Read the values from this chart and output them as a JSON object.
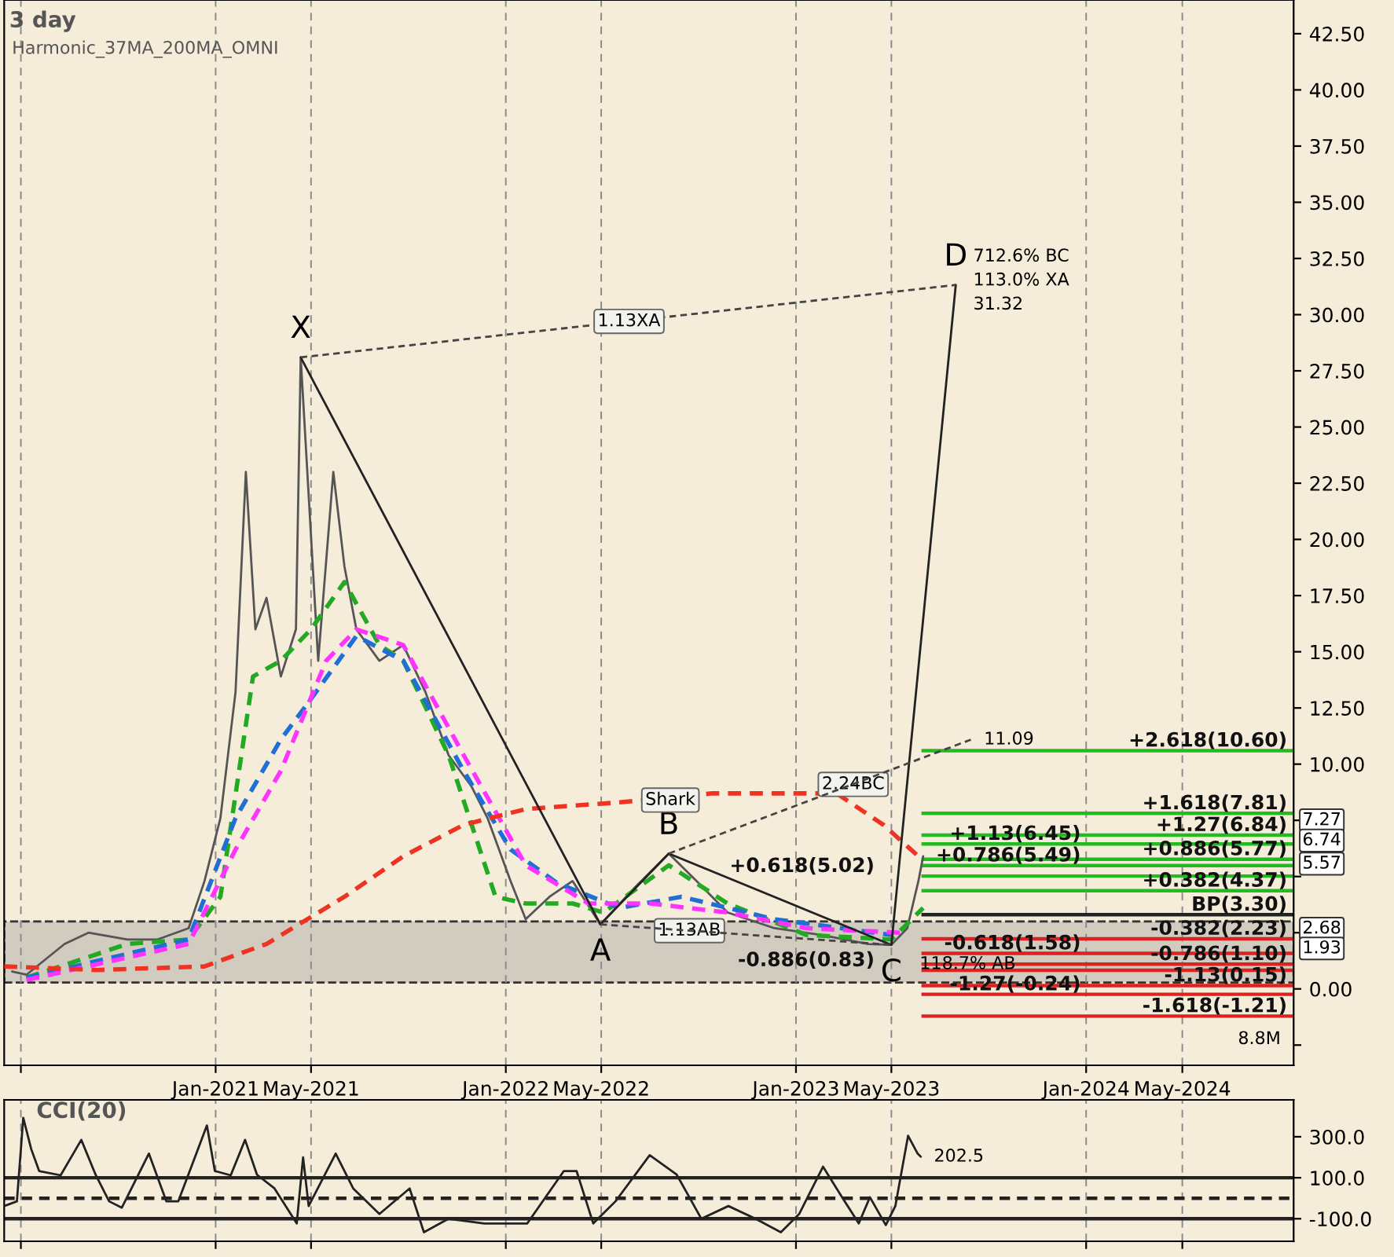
{
  "chart_data": [
    {
      "type": "line",
      "title": "3 day",
      "subtitle": "Harmonic_37MA_200MA_OMNI",
      "xlim": [
        "2020-04-10",
        "2024-09-18"
      ],
      "ylim": [
        -3.4,
        44
      ],
      "xticks": [
        {
          "value": "2020-05-01",
          "label": null
        },
        {
          "value": "2021-01-01",
          "label": "Jan-2021"
        },
        {
          "value": "2021-05-01",
          "label": "May-2021"
        },
        {
          "value": "2022-01-01",
          "label": "Jan-2022"
        },
        {
          "value": "2022-05-01",
          "label": "May-2022"
        },
        {
          "value": "2023-01-01",
          "label": "Jan-2023"
        },
        {
          "value": "2023-05-01",
          "label": "May-2023"
        },
        {
          "value": "2024-01-01",
          "label": "Jan-2024"
        },
        {
          "value": "2024-05-01",
          "label": "May-2024"
        }
      ],
      "yticks": [
        {
          "value": -2.5,
          "label": null
        },
        {
          "value": 0,
          "label": "0.00"
        },
        {
          "value": 2.5,
          "label": null
        },
        {
          "value": 5,
          "label": null
        },
        {
          "value": 7.5,
          "label": null
        },
        {
          "value": 10,
          "label": "10.00"
        },
        {
          "value": 12.5,
          "label": "12.50"
        },
        {
          "value": 15,
          "label": "15.00"
        },
        {
          "value": 17.5,
          "label": "17.50"
        },
        {
          "value": 20,
          "label": "20.00"
        },
        {
          "value": 22.5,
          "label": "22.50"
        },
        {
          "value": 25,
          "label": "25.00"
        },
        {
          "value": 27.5,
          "label": "27.50"
        },
        {
          "value": 30,
          "label": "30.00"
        },
        {
          "value": 32.5,
          "label": "32.50"
        },
        {
          "value": 35,
          "label": "35.00"
        },
        {
          "value": 37.5,
          "label": "37.50"
        },
        {
          "value": 40,
          "label": "40.00"
        },
        {
          "value": 42.5,
          "label": "42.50"
        }
      ],
      "grid": "x",
      "series": [
        {
          "color": "#555555",
          "x": [
            "2020-04-20",
            "2020-05-08",
            "2020-06-25",
            "2020-07-25",
            "2020-09-12",
            "2020-10-20",
            "2020-11-28",
            "2020-12-18",
            "2021-01-07",
            "2021-01-26",
            "2021-02-08",
            "2021-02-20",
            "2021-03-06",
            "2021-03-24",
            "2021-04-12",
            "2021-04-18",
            "2021-05-10",
            "2021-05-29",
            "2021-06-12",
            "2021-06-27",
            "2021-07-26",
            "2021-08-25",
            "2021-09-22",
            "2021-10-21",
            "2021-11-19",
            "2021-12-09",
            "2022-01-07",
            "2022-01-26",
            "2022-02-25",
            "2022-03-26",
            "2022-04-30",
            "2022-06-12",
            "2022-07-25",
            "2022-08-29",
            "2022-10-07",
            "2022-12-05",
            "2023-02-02",
            "2023-04-02",
            "2023-05-01",
            "2023-05-21",
            "2023-06-04",
            "2023-06-10"
          ],
          "values": [
            0.77,
            0.63,
            2.0,
            2.5,
            2.2,
            2.2,
            2.7,
            4.8,
            7.6,
            13.2,
            23.0,
            16.0,
            17.4,
            13.9,
            16.0,
            28.1,
            14.6,
            23.0,
            18.8,
            16.0,
            14.6,
            15.3,
            13.2,
            10.4,
            9.0,
            7.6,
            4.8,
            3.1,
            4.1,
            4.8,
            2.87,
            4.5,
            6.02,
            4.8,
            3.4,
            2.7,
            2.4,
            2.0,
            1.96,
            2.7,
            4.8,
            5.9
          ]
        },
        {
          "color": "#22aa22",
          "line_style": "dashed",
          "x": [
            "2020-05-08",
            "2020-09-12",
            "2020-11-28",
            "2021-01-07",
            "2021-02-17",
            "2021-03-24",
            "2021-05-01",
            "2021-06-12",
            "2021-07-26",
            "2021-08-25",
            "2021-10-21",
            "2021-12-19",
            "2022-01-26",
            "2022-03-26",
            "2022-05-04",
            "2022-07-25",
            "2022-10-07",
            "2023-01-14",
            "2023-05-01",
            "2023-06-10"
          ],
          "values": [
            0.5,
            2.0,
            2.2,
            4.1,
            13.9,
            14.6,
            16.0,
            18.1,
            15.3,
            14.6,
            10.4,
            4.1,
            3.8,
            3.8,
            3.4,
            5.5,
            3.8,
            2.4,
            2.2,
            3.6
          ]
        },
        {
          "color": "#1f6fd6",
          "line_style": "dashed",
          "x": [
            "2020-05-08",
            "2020-11-28",
            "2021-01-26",
            "2021-03-24",
            "2021-05-01",
            "2021-06-27",
            "2021-08-25",
            "2021-11-09",
            "2022-01-07",
            "2022-03-07",
            "2022-05-24",
            "2022-08-10",
            "2022-12-05",
            "2023-05-01"
          ],
          "values": [
            0.5,
            2.2,
            7.6,
            11.1,
            12.9,
            15.7,
            14.6,
            9.7,
            6.2,
            4.7,
            3.6,
            4.1,
            3.1,
            2.4
          ]
        },
        {
          "color": "#ff33ff",
          "line_style": "dashed",
          "x": [
            "2020-05-08",
            "2020-11-28",
            "2021-01-26",
            "2021-03-24",
            "2021-05-20",
            "2021-06-27",
            "2021-08-25",
            "2021-11-09",
            "2022-01-26",
            "2022-04-15",
            "2022-07-02",
            "2022-10-07",
            "2023-01-14",
            "2023-05-12"
          ],
          "values": [
            0.4,
            2.0,
            6.2,
            9.7,
            14.6,
            16.0,
            15.3,
            10.4,
            5.5,
            3.8,
            3.8,
            3.4,
            2.7,
            2.5
          ]
        },
        {
          "color": "#ee3322",
          "line_style": "dashed",
          "x": [
            "2020-04-10",
            "2020-08-05",
            "2020-12-18",
            "2021-03-06",
            "2021-06-12",
            "2021-08-25",
            "2021-11-09",
            "2022-01-26",
            "2022-05-24",
            "2022-09-18",
            "2023-02-21",
            "2023-04-21",
            "2023-06-04"
          ],
          "values": [
            1.0,
            0.84,
            1.0,
            2.0,
            4.1,
            5.9,
            7.3,
            8.0,
            8.3,
            8.7,
            8.7,
            7.3,
            5.9
          ]
        },
        {
          "color": "#222222",
          "x": [
            "2021-04-18",
            "2022-04-30",
            "2022-07-25",
            "2023-05-01",
            "2023-07-21"
          ],
          "values": [
            28.1,
            2.87,
            6.02,
            1.96,
            31.32
          ]
        },
        {
          "color": "#444444",
          "line_style": "dashed",
          "x": [
            "2021-04-18",
            "2023-07-21"
          ],
          "values": [
            28.1,
            31.32
          ]
        },
        {
          "color": "#444444",
          "line_style": "dashed",
          "x": [
            "2022-04-30",
            "2023-05-01"
          ],
          "values": [
            2.87,
            1.96
          ]
        },
        {
          "color": "#444444",
          "line_style": "dashed",
          "x": [
            "2022-07-25",
            "2023-08-09"
          ],
          "values": [
            6.02,
            11.09
          ]
        }
      ],
      "bands": [
        {
          "axis": "y",
          "from": 0.28,
          "to": 3.0,
          "color": "#d2ccc0"
        }
      ],
      "ref_lines": [
        {
          "axis": "y",
          "value": 10.6,
          "label": "+2.618(10.60)",
          "color": "#22bb22"
        },
        {
          "axis": "y",
          "value": 7.81,
          "label": "+1.618(7.81)",
          "color": "#22bb22"
        },
        {
          "axis": "y",
          "value": 6.84,
          "label": "+1.27(6.84)",
          "color": "#22bb22"
        },
        {
          "axis": "y",
          "value": 6.45,
          "label": "+1.13(6.45)",
          "color": "#22bb22"
        },
        {
          "axis": "y",
          "value": 5.77,
          "label": "+0.886(5.77)",
          "color": "#22bb22"
        },
        {
          "axis": "y",
          "value": 5.49,
          "label": "+0.786(5.49)",
          "color": "#22bb22"
        },
        {
          "axis": "y",
          "value": 5.02,
          "label": "+0.618(5.02)",
          "color": "#22bb22"
        },
        {
          "axis": "y",
          "value": 4.37,
          "label": "+0.382(4.37)",
          "color": "#22bb22"
        },
        {
          "axis": "y",
          "value": 3.3,
          "label": "BP(3.30)",
          "color": "#222222"
        },
        {
          "axis": "y",
          "value": 2.23,
          "label": "-0.382(2.23)",
          "color": "#dd2222"
        },
        {
          "axis": "y",
          "value": 1.58,
          "label": "-0.618(1.58)",
          "color": "#dd2222"
        },
        {
          "axis": "y",
          "value": 1.1,
          "label": "-0.786(1.10)",
          "color": "#dd2222"
        },
        {
          "axis": "y",
          "value": 0.83,
          "label": "-0.886(0.83)",
          "color": "#dd2222"
        },
        {
          "axis": "y",
          "value": 0.15,
          "label": "-1.13(0.15)",
          "color": "#dd2222"
        },
        {
          "axis": "y",
          "value": -0.24,
          "label": "-1.27(-0.24)",
          "color": "#dd2222"
        },
        {
          "axis": "y",
          "value": -1.21,
          "label": "-1.618(-1.21)",
          "color": "#dd2222"
        }
      ],
      "annotations": [
        {
          "text": "X",
          "x": "2021-04-18",
          "y": 28.1
        },
        {
          "text": "A",
          "x": "2022-04-30",
          "y": 2.87
        },
        {
          "text": "B",
          "x": "2022-07-25",
          "y": 6.02
        },
        {
          "text": "C",
          "x": "2023-05-01",
          "y": 1.96
        },
        {
          "text": "D",
          "x": "2023-07-21",
          "y": 31.32
        },
        {
          "text": "712.6% BC",
          "x": "2023-07-21",
          "y": 31.32
        },
        {
          "text": "113.0% XA",
          "x": "2023-07-21",
          "y": 31.32
        },
        {
          "text": "31.32",
          "x": "2023-07-21",
          "y": 31.32
        },
        {
          "text": "1.13XA",
          "x": "2022-06-05",
          "y": 29.7
        },
        {
          "text": "1.13AB",
          "x": "2022-08-20",
          "y": 2.59
        },
        {
          "text": "2.24BC",
          "x": "2023-03-14",
          "y": 9.1
        },
        {
          "text": "118.7% AB",
          "x": "2023-08-05",
          "y": 1.1
        },
        {
          "text": "11.09",
          "x": "2023-08-09",
          "y": 11.09
        },
        {
          "text": "Shark",
          "x": "2022-07-27",
          "y": 8.4
        },
        {
          "text": "7.27",
          "x": "2024-09-18",
          "y": 7.5
        },
        {
          "text": "6.74",
          "x": "2024-09-18",
          "y": 6.6
        },
        {
          "text": "5.57",
          "x": "2024-09-18",
          "y": 5.57
        },
        {
          "text": "2.68",
          "x": "2024-09-18",
          "y": 2.68
        },
        {
          "text": "1.93",
          "x": "2024-09-18",
          "y": 1.8
        },
        "8.8M"
      ]
    },
    {
      "type": "line",
      "title": "CCI(20)",
      "xlim": [
        "2020-04-10",
        "2024-09-18"
      ],
      "ylim": [
        -210,
        480
      ],
      "xticks": [
        {
          "value": "2020-05-01",
          "label": null
        },
        {
          "value": "2021-01-01",
          "label": null
        },
        {
          "value": "2021-05-01",
          "label": null
        },
        {
          "value": "2022-01-01",
          "label": null
        },
        {
          "value": "2022-05-01",
          "label": null
        },
        {
          "value": "2023-01-01",
          "label": null
        },
        {
          "value": "2023-05-01",
          "label": null
        },
        {
          "value": "2024-01-01",
          "label": null
        },
        {
          "value": "2024-05-01",
          "label": null
        }
      ],
      "yticks": [
        {
          "value": 300,
          "label": "300.0"
        },
        {
          "value": 100,
          "label": "100.0"
        },
        {
          "value": -100,
          "label": "-100.0"
        }
      ],
      "tick_labels": "y",
      "grid": "x",
      "series": [
        {
          "color": "#222222",
          "x": [
            "2020-04-10",
            "2020-04-26",
            "2020-05-04",
            "2020-05-14",
            "2020-05-24",
            "2020-06-20",
            "2020-07-16",
            "2020-08-03",
            "2020-08-20",
            "2020-09-05",
            "2020-10-09",
            "2020-10-31",
            "2020-11-15",
            "2020-12-21",
            "2020-12-31",
            "2021-01-20",
            "2021-02-07",
            "2021-02-22",
            "2021-03-16",
            "2021-04-13",
            "2021-04-21",
            "2021-04-28",
            "2021-06-01",
            "2021-06-23",
            "2021-07-26",
            "2021-09-02",
            "2021-09-20",
            "2021-10-21",
            "2021-12-05",
            "2022-01-28",
            "2022-03-15",
            "2022-03-31",
            "2022-04-21",
            "2022-05-19",
            "2022-07-01",
            "2022-08-04",
            "2022-09-04",
            "2022-10-08",
            "2022-11-11",
            "2022-12-13",
            "2023-01-05",
            "2023-02-04",
            "2023-02-28",
            "2023-03-21",
            "2023-04-04",
            "2023-04-24",
            "2023-05-06",
            "2023-05-22",
            "2023-06-03",
            "2023-06-07"
          ],
          "values": [
            -38,
            -15,
            392,
            240,
            133,
            112,
            285,
            115,
            -15,
            -46,
            218,
            -15,
            -15,
            355,
            133,
            112,
            285,
            115,
            48,
            -123,
            200,
            -38,
            218,
            48,
            -77,
            48,
            -166,
            -100,
            -123,
            -123,
            133,
            133,
            -123,
            -15,
            210,
            115,
            -100,
            -38,
            -100,
            -166,
            -77,
            154,
            5,
            -123,
            5,
            -131,
            -38,
            305,
            218,
            202.5
          ]
        }
      ],
      "ref_lines": [
        {
          "axis": "y",
          "value": 100,
          "color": "#222222",
          "line_style": "solid"
        },
        {
          "axis": "y",
          "value": 0,
          "color": "#222222",
          "line_style": "dashed"
        },
        {
          "axis": "y",
          "value": -100,
          "color": "#222222",
          "line_style": "solid"
        }
      ],
      "annotations": [
        {
          "text": "202.5",
          "x": "2023-06-07",
          "y": 202.5
        }
      ]
    }
  ]
}
